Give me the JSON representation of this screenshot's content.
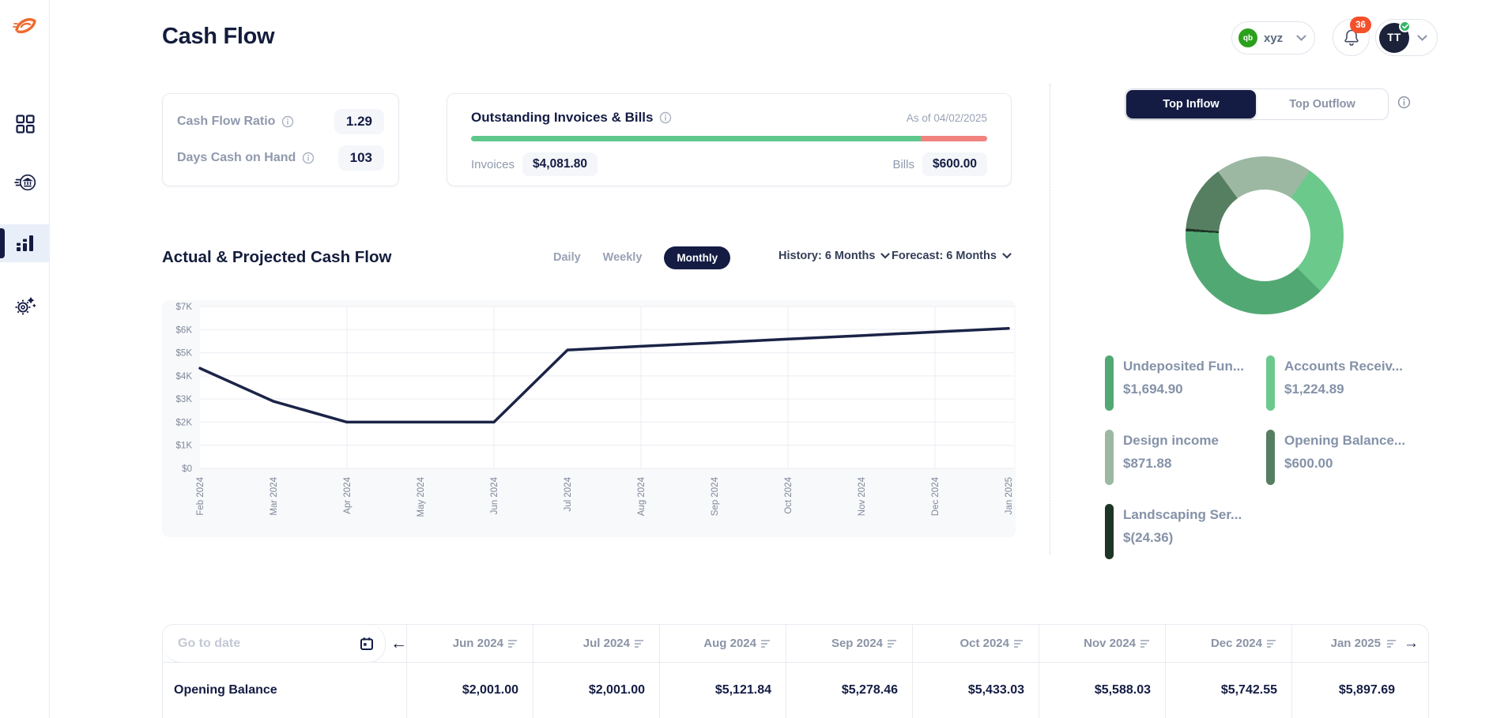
{
  "header": {
    "title": "Cash Flow",
    "org": "xyz",
    "org_logo_text": "qb",
    "notifications": "36",
    "avatar_initials": "TT"
  },
  "sidebar": {
    "items": [
      {
        "name": "dashboard"
      },
      {
        "name": "banking"
      },
      {
        "name": "cash-flow",
        "active": true
      },
      {
        "name": "settings"
      }
    ]
  },
  "metrics": {
    "rows": [
      {
        "label": "Cash Flow Ratio",
        "value": "1.29"
      },
      {
        "label": "Days Cash on Hand",
        "value": "103"
      }
    ]
  },
  "outstanding": {
    "title": "Outstanding Invoices & Bills",
    "as_of": "As of 04/02/2025",
    "invoices_label": "Invoices",
    "invoices_value": "$4,081.80",
    "bills_label": "Bills",
    "bills_value": "$600.00",
    "invoices_pct": 87.2,
    "invoices_color": "#5ec88c",
    "bills_color": "#f0837e"
  },
  "cashflow_section": {
    "title": "Actual & Projected Cash Flow",
    "frequency_options": [
      "Daily",
      "Weekly",
      "Monthly"
    ],
    "active_frequency": "Monthly",
    "history_label": "History: 6 Months",
    "forecast_label": "Forecast: 6 Months"
  },
  "chart_data": {
    "type": "line",
    "title": "Actual & Projected Cash Flow",
    "x": [
      "Feb 2024",
      "Mar 2024",
      "Apr 2024",
      "May 2024",
      "Jun 2024",
      "Jul 2024",
      "Aug 2024",
      "Sep 2024",
      "Oct 2024",
      "Nov 2024",
      "Dec 2024",
      "Jan 2025"
    ],
    "values": [
      4330,
      2900,
      2000,
      2000,
      2000,
      5120,
      5280,
      5430,
      5590,
      5740,
      5900,
      6050
    ],
    "y_ticks": [
      "$0",
      "$1K",
      "$2K",
      "$3K",
      "$4K",
      "$5K",
      "$6K",
      "$7K"
    ],
    "ylim": [
      0,
      7000
    ],
    "line_color": "#1b2447",
    "grid": true,
    "legend_position": "none"
  },
  "top_panel": {
    "tabs": [
      "Top Inflow",
      "Top Outflow"
    ],
    "active_tab": "Top Inflow",
    "donut": {
      "type": "pie",
      "start_deg": 35,
      "draw_order": [
        "Accounts Receiv...",
        "Undeposited Fun...",
        "Landscaping Ser...",
        "Opening Balance...",
        "Design income"
      ],
      "legend": [
        {
          "name": "Undeposited Fun...",
          "value_label": "$1,694.90",
          "value": 1694.9,
          "color": "#52a873"
        },
        {
          "name": "Accounts Receiv...",
          "value_label": "$1,224.89",
          "value": 1224.89,
          "color": "#6cc98c"
        },
        {
          "name": "Design income",
          "value_label": "$871.88",
          "value": 871.88,
          "color": "#9cb8a2"
        },
        {
          "name": "Opening Balance...",
          "value_label": "$600.00",
          "value": 600.0,
          "color": "#567e60"
        },
        {
          "name": "Landscaping Ser...",
          "value_label": "$(24.36)",
          "value": 24.36,
          "color": "#1d3526"
        }
      ]
    }
  },
  "table": {
    "goto_placeholder": "Go to date",
    "prev_arrow": "←",
    "next_arrow": "→",
    "columns": [
      "Jun 2024",
      "Jul 2024",
      "Aug 2024",
      "Sep 2024",
      "Oct 2024",
      "Nov 2024",
      "Dec 2024",
      "Jan 2025"
    ],
    "row_label": "Opening Balance",
    "values": [
      "$2,001.00",
      "$2,001.00",
      "$5,121.84",
      "$5,278.46",
      "$5,433.03",
      "$5,588.03",
      "$5,742.55",
      "$5,897.69"
    ]
  }
}
